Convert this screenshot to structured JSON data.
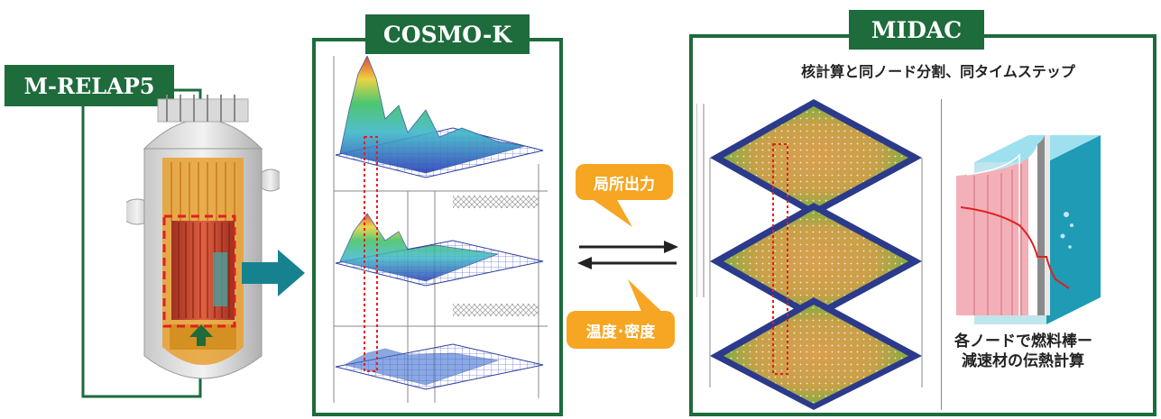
{
  "labels": {
    "mrelap": "M-RELAP5",
    "cosmo": "COSMO-K",
    "midac": "MIDAC"
  },
  "exchange": {
    "top": "局所出力",
    "bottom": "温度･密度"
  },
  "midac_panel": {
    "subtitle": "核計算と同ノード分割、同タイムステップ",
    "fuel_caption_line1": "各ノードで燃料棒ー",
    "fuel_caption_line2": "減速材の伝熱計算"
  },
  "colors": {
    "brand_green": "#1e6b3c",
    "arrow_teal": "#17828f",
    "bubble_orange": "#f6a623"
  }
}
